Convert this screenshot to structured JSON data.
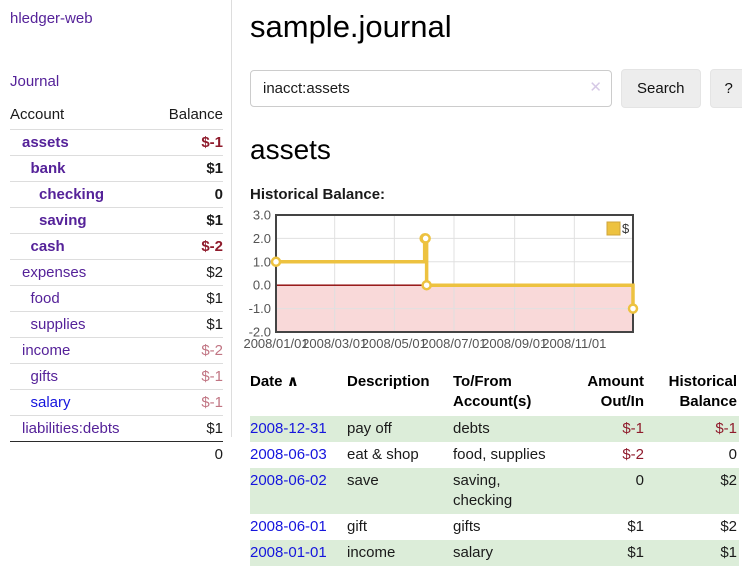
{
  "sidebar": {
    "brand": "hledger-web",
    "nav": {
      "journal": "Journal"
    },
    "table": {
      "account_header": "Account",
      "balance_header": "Balance",
      "accounts": [
        {
          "name": "assets",
          "level": 1,
          "bold": true,
          "link_color": "purple",
          "balance": "$-1",
          "balance_style": "neg"
        },
        {
          "name": "bank",
          "level": 2,
          "bold": true,
          "link_color": "purple",
          "balance": "$1",
          "balance_style": "plain"
        },
        {
          "name": "checking",
          "level": 3,
          "bold": true,
          "link_color": "purple",
          "balance": "0",
          "balance_style": "plain"
        },
        {
          "name": "saving",
          "level": 3,
          "bold": true,
          "link_color": "purple",
          "balance": "$1",
          "balance_style": "plain"
        },
        {
          "name": "cash",
          "level": 2,
          "bold": true,
          "link_color": "purple",
          "balance": "$-2",
          "balance_style": "neg"
        },
        {
          "name": "expenses",
          "level": 1,
          "bold": false,
          "link_color": "purple",
          "balance": "$2",
          "balance_style": "plain"
        },
        {
          "name": "food",
          "level": 2,
          "bold": false,
          "link_color": "purple",
          "balance": "$1",
          "balance_style": "plain"
        },
        {
          "name": "supplies",
          "level": 2,
          "bold": false,
          "link_color": "purple",
          "balance": "$1",
          "balance_style": "plain"
        },
        {
          "name": "income",
          "level": 1,
          "bold": false,
          "link_color": "purple",
          "balance": "$-2",
          "balance_style": "negfaint"
        },
        {
          "name": "gifts",
          "level": 2,
          "bold": false,
          "link_color": "purple",
          "balance": "$-1",
          "balance_style": "negfaint"
        },
        {
          "name": "salary",
          "level": 2,
          "bold": false,
          "link_color": "blue",
          "balance": "$-1",
          "balance_style": "negfaint"
        },
        {
          "name": "liabilities:debts",
          "level": 1,
          "bold": false,
          "link_color": "purple",
          "balance": "$1",
          "balance_style": "plain"
        }
      ],
      "total": "0"
    }
  },
  "main": {
    "title": "sample.journal",
    "search": {
      "value": "inacct:assets",
      "clear_icon": "✕",
      "search_button": "Search",
      "help_button": "?"
    },
    "account_heading": "assets"
  },
  "chart_data": {
    "type": "line",
    "title": "Historical Balance:",
    "step": true,
    "xlim": [
      "2008-01-01",
      "2008-12-31"
    ],
    "ylim": [
      -2,
      3
    ],
    "x_ticks": [
      "2008/01/01",
      "2008/03/01",
      "2008/05/01",
      "2008/07/01",
      "2008/09/01",
      "2008/11/01"
    ],
    "y_ticks": [
      "3.0",
      "2.0",
      "1.0",
      "0.0",
      "-1.0",
      "-2.0"
    ],
    "grid": true,
    "legend_position": "top-right",
    "series": [
      {
        "name": "$",
        "color": "#edc240",
        "points": [
          [
            "2008-01-01",
            1
          ],
          [
            "2008-06-01",
            2
          ],
          [
            "2008-06-02",
            2
          ],
          [
            "2008-06-03",
            0
          ],
          [
            "2008-12-31",
            -1
          ]
        ]
      }
    ],
    "zero_line_color": "#8b0000",
    "negative_fill": "#f9d9d9",
    "grid_color": "#e0e0e0",
    "border_color": "#444444",
    "tick_color": "#545454"
  },
  "register": {
    "headers": {
      "date": "Date",
      "sort_icon": "∧",
      "description": "Description",
      "accounts": "To/From Account(s)",
      "amount": "Amount Out/In",
      "balance": "Historical Balance"
    },
    "rows": [
      {
        "date": "2008-12-31",
        "description": "pay off",
        "accounts": "debts",
        "amount": "$-1",
        "amount_style": "neg",
        "balance": "$-1",
        "balance_style": "neg",
        "shaded": true
      },
      {
        "date": "2008-06-03",
        "description": "eat & shop",
        "accounts": "food, supplies",
        "amount": "$-2",
        "amount_style": "neg",
        "balance": "0",
        "balance_style": "plain",
        "shaded": false
      },
      {
        "date": "2008-06-02",
        "description": "save",
        "accounts": "saving, checking",
        "amount": "0",
        "amount_style": "plain",
        "balance": "$2",
        "balance_style": "plain",
        "shaded": true
      },
      {
        "date": "2008-06-01",
        "description": "gift",
        "accounts": "gifts",
        "amount": "$1",
        "amount_style": "plain",
        "balance": "$2",
        "balance_style": "plain",
        "shaded": false
      },
      {
        "date": "2008-01-01",
        "description": "income",
        "accounts": "salary",
        "amount": "$1",
        "amount_style": "plain",
        "balance": "$1",
        "balance_style": "plain",
        "shaded": true
      }
    ]
  }
}
